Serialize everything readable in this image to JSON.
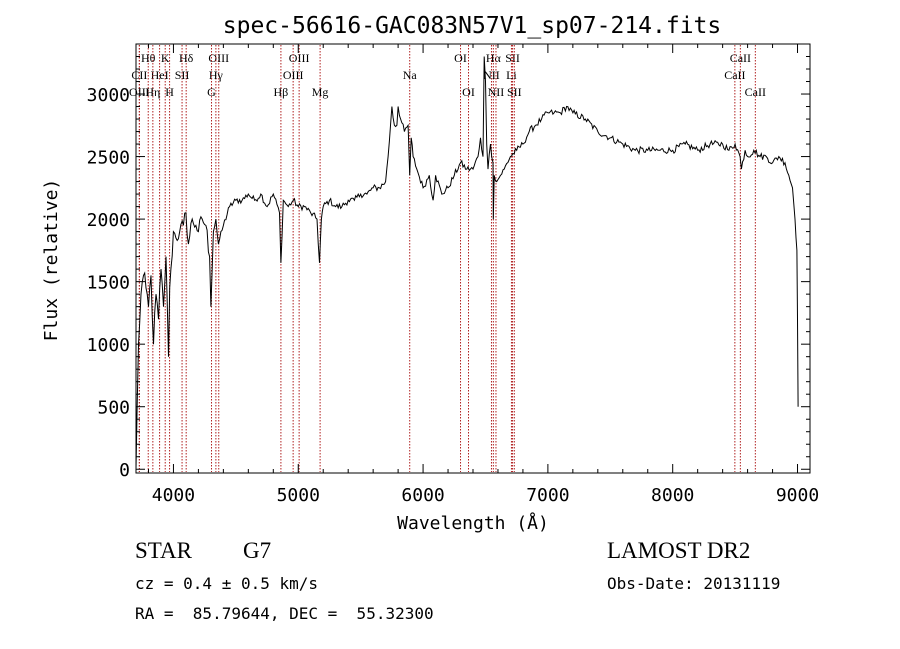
{
  "chart_data": {
    "type": "line",
    "title": "spec-56616-GAC083N57V1_sp07-214.fits",
    "xlabel": "Wavelength (Å)",
    "ylabel": "Flux (relative)",
    "xlim": [
      3700,
      9100
    ],
    "ylim": [
      -30,
      3400
    ],
    "x_ticks": [
      4000,
      5000,
      6000,
      7000,
      8000,
      9000
    ],
    "y_ticks": [
      0,
      500,
      1000,
      1500,
      2000,
      2500,
      3000
    ],
    "grid": false,
    "line_color": "#000000",
    "marker_color": "#b02020",
    "series": [
      {
        "x": [
          3700,
          3720,
          3740,
          3760,
          3780,
          3800,
          3820,
          3840,
          3860,
          3880,
          3900,
          3920,
          3940,
          3960,
          3970,
          3980,
          4000,
          4020,
          4050,
          4080,
          4100,
          4120,
          4150,
          4180,
          4200,
          4230,
          4260,
          4290,
          4300,
          4320,
          4340,
          4360,
          4400,
          4450,
          4500,
          4550,
          4600,
          4650,
          4700,
          4750,
          4800,
          4850,
          4861,
          4880,
          4920,
          4960,
          5000,
          5050,
          5100,
          5150,
          5170,
          5185,
          5200,
          5250,
          5300,
          5350,
          5400,
          5450,
          5500,
          5550,
          5600,
          5650,
          5700,
          5720,
          5750,
          5770,
          5790,
          5800,
          5820,
          5850,
          5880,
          5893,
          5905,
          5920,
          5950,
          6000,
          6050,
          6080,
          6100,
          6150,
          6200,
          6250,
          6300,
          6350,
          6400,
          6440,
          6460,
          6480,
          6490,
          6500,
          6510,
          6520,
          6540,
          6560,
          6563,
          6570,
          6590,
          6620,
          6650,
          6700,
          6750,
          6800,
          6850,
          6900,
          6950,
          7000,
          7050,
          7100,
          7150,
          7200,
          7300,
          7400,
          7500,
          7600,
          7700,
          7800,
          7900,
          8000,
          8100,
          8200,
          8300,
          8400,
          8450,
          8500,
          8540,
          8550,
          8580,
          8600,
          8650,
          8700,
          8750,
          8800,
          8850,
          8900,
          8930,
          8960,
          8980,
          8995,
          9000,
          9005
        ],
        "y": [
          0,
          1000,
          1400,
          1550,
          1450,
          1300,
          1550,
          1000,
          1400,
          1200,
          1600,
          1300,
          1700,
          900,
          1450,
          1600,
          1900,
          1850,
          1900,
          1950,
          2050,
          1800,
          2000,
          1950,
          1900,
          2000,
          1950,
          1700,
          1300,
          1900,
          2000,
          1800,
          1950,
          2100,
          2150,
          2150,
          2200,
          2150,
          2200,
          2100,
          2200,
          2050,
          1650,
          2150,
          2100,
          2150,
          2100,
          2100,
          2050,
          2000,
          1650,
          2000,
          2100,
          2150,
          2100,
          2100,
          2150,
          2150,
          2200,
          2200,
          2250,
          2250,
          2300,
          2500,
          2900,
          2750,
          2750,
          2900,
          2800,
          2700,
          2750,
          2350,
          2650,
          2500,
          2400,
          2250,
          2350,
          2150,
          2350,
          2200,
          2250,
          2350,
          2450,
          2400,
          2400,
          2500,
          2650,
          2500,
          3300,
          3100,
          2600,
          2400,
          2600,
          2450,
          2000,
          2350,
          2300,
          2350,
          2400,
          2500,
          2550,
          2600,
          2700,
          2750,
          2800,
          2850,
          2850,
          2850,
          2900,
          2850,
          2800,
          2700,
          2650,
          2600,
          2550,
          2550,
          2550,
          2550,
          2600,
          2550,
          2600,
          2600,
          2550,
          2600,
          2500,
          2400,
          2550,
          2500,
          2550,
          2500,
          2500,
          2450,
          2500,
          2450,
          2350,
          2250,
          2000,
          1750,
          1200,
          500
        ]
      }
    ],
    "line_markers": [
      {
        "label": "Hθ",
        "x": 3798,
        "row": 1
      },
      {
        "label": "CII",
        "x": 3727,
        "row": 2
      },
      {
        "label": "OIII",
        "x": 3727,
        "row": 3
      },
      {
        "label": "K",
        "x": 3934,
        "row": 1
      },
      {
        "label": "HeI",
        "x": 3889,
        "row": 2
      },
      {
        "label": "Hη",
        "x": 3835,
        "row": 3
      },
      {
        "label": "Hδ",
        "x": 4102,
        "row": 1
      },
      {
        "label": "SII",
        "x": 4069,
        "row": 2
      },
      {
        "label": "H",
        "x": 3969,
        "row": 3
      },
      {
        "label": "OIII",
        "x": 4363,
        "row": 1
      },
      {
        "label": "Hγ",
        "x": 4340,
        "row": 2
      },
      {
        "label": "G",
        "x": 4305,
        "row": 3
      },
      {
        "label": "OIII",
        "x": 5007,
        "row": 1
      },
      {
        "label": "OIII",
        "x": 4959,
        "row": 2
      },
      {
        "label": "Hβ",
        "x": 4861,
        "row": 3
      },
      {
        "label": "Mg",
        "x": 5175,
        "row": 3
      },
      {
        "label": "Na",
        "x": 5893,
        "row": 2
      },
      {
        "label": "OI",
        "x": 6300,
        "row": 1
      },
      {
        "label": "OI",
        "x": 6364,
        "row": 3
      },
      {
        "label": "Hα",
        "x": 6563,
        "row": 1
      },
      {
        "label": "SII",
        "x": 6717,
        "row": 1
      },
      {
        "label": "NII",
        "x": 6548,
        "row": 2
      },
      {
        "label": "Li",
        "x": 6708,
        "row": 2
      },
      {
        "label": "NII",
        "x": 6584,
        "row": 3
      },
      {
        "label": "SII",
        "x": 6731,
        "row": 3
      },
      {
        "label": "CaII",
        "x": 8542,
        "row": 1
      },
      {
        "label": "CaII",
        "x": 8498,
        "row": 2
      },
      {
        "label": "CaII",
        "x": 8662,
        "row": 3
      }
    ]
  },
  "info": {
    "class": "STAR",
    "subclass": "G7",
    "survey": "LAMOST DR2",
    "cz": "cz = 0.4 ± 0.5 km/s",
    "obs_date": "Obs-Date: 20131119",
    "radec": "RA =  85.79644, DEC =  55.32300"
  }
}
